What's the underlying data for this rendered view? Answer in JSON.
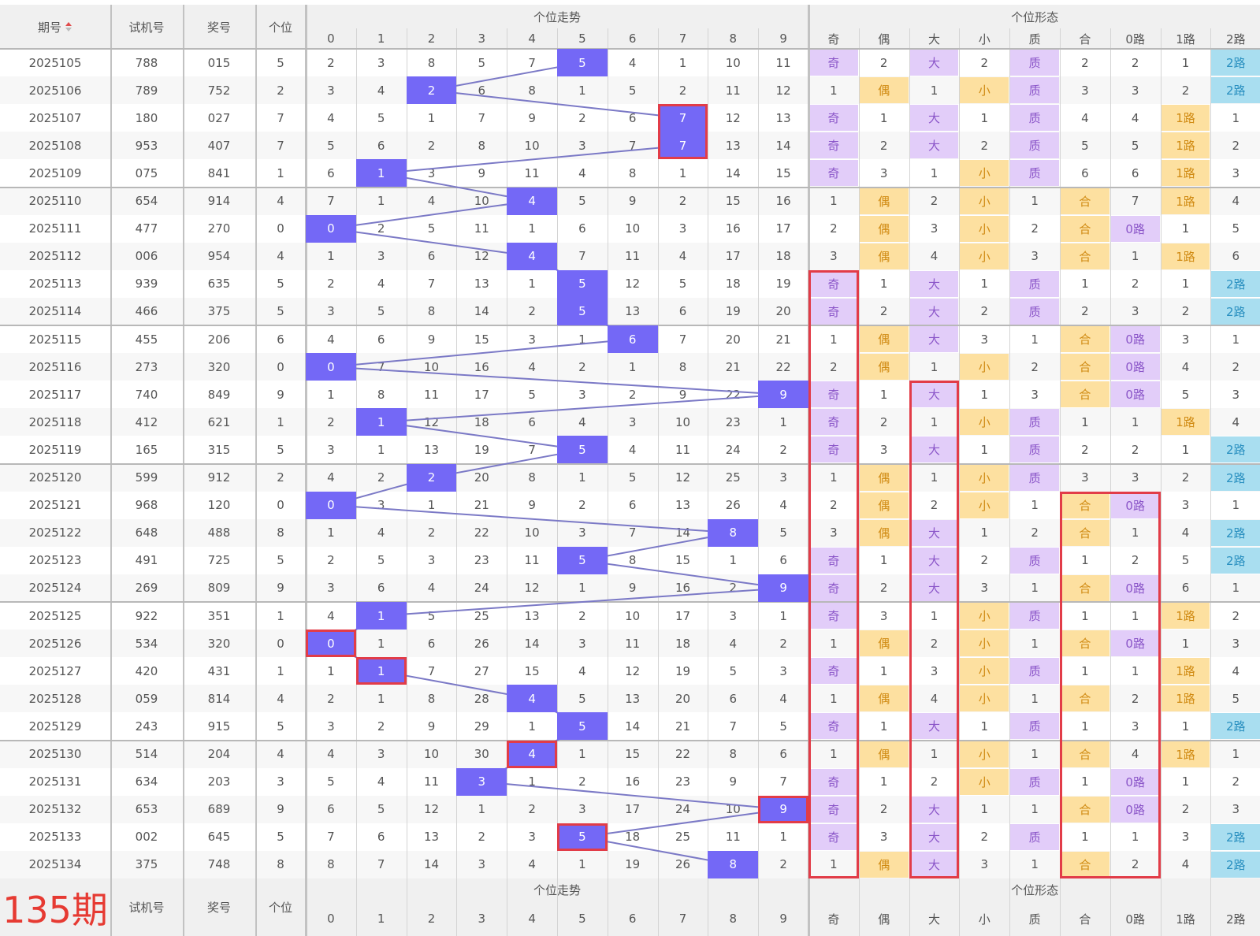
{
  "headers": {
    "issue": "期号",
    "sort_icon": "sort-arrows-icon",
    "trial": "试机号",
    "prize": "奖号",
    "unit": "个位",
    "trend_group": "个位走势",
    "shape_group": "个位形态",
    "digits": [
      "0",
      "1",
      "2",
      "3",
      "4",
      "5",
      "6",
      "7",
      "8",
      "9"
    ],
    "shapes": [
      "奇",
      "偶",
      "大",
      "小",
      "质",
      "合",
      "0路",
      "1路",
      "2路"
    ]
  },
  "footer": {
    "issue_label": "135期",
    "trial": "试机号",
    "prize": "奖号",
    "unit": "个位",
    "trend_group": "个位走势",
    "shape_group": "个位形态",
    "digits": [
      "0",
      "1",
      "2",
      "3",
      "4",
      "5",
      "6",
      "7",
      "8",
      "9"
    ],
    "shapes": [
      "奇",
      "偶",
      "大",
      "小",
      "质",
      "合",
      "0路",
      "1路",
      "2路"
    ]
  },
  "colors": {
    "hit": "#7468f6",
    "purple_cell": "#e2cdf9",
    "orange_cell": "#fde0a0",
    "blue_cell": "#a9def0",
    "highlight_border": "#e23c48",
    "line": "#7b79c6"
  },
  "chart_data": {
    "type": "table",
    "columns": [
      "期号",
      "试机号",
      "奖号",
      "个位",
      "个位走势 0-9",
      "奇",
      "偶",
      "大",
      "小",
      "质",
      "合",
      "0路",
      "1路",
      "2路"
    ],
    "rows": [
      {
        "issue": "2025105",
        "trial": "788",
        "prize": "015",
        "unit": "5",
        "trend": [
          "2",
          "3",
          "8",
          "5",
          "7",
          "5",
          "4",
          "1",
          "10",
          "11"
        ],
        "shape": [
          "奇",
          "2",
          "大",
          "2",
          "质",
          "2",
          "2",
          "1",
          "2路"
        ]
      },
      {
        "issue": "2025106",
        "trial": "789",
        "prize": "752",
        "unit": "2",
        "trend": [
          "3",
          "4",
          "2",
          "6",
          "8",
          "1",
          "5",
          "2",
          "11",
          "12"
        ],
        "shape": [
          "1",
          "偶",
          "1",
          "小",
          "质",
          "3",
          "3",
          "2",
          "2路"
        ]
      },
      {
        "issue": "2025107",
        "trial": "180",
        "prize": "027",
        "unit": "7",
        "trend": [
          "4",
          "5",
          "1",
          "7",
          "9",
          "2",
          "6",
          "7",
          "12",
          "13"
        ],
        "shape": [
          "奇",
          "1",
          "大",
          "1",
          "质",
          "4",
          "4",
          "1路",
          "1"
        ]
      },
      {
        "issue": "2025108",
        "trial": "953",
        "prize": "407",
        "unit": "7",
        "trend": [
          "5",
          "6",
          "2",
          "8",
          "10",
          "3",
          "7",
          "7",
          "13",
          "14"
        ],
        "shape": [
          "奇",
          "2",
          "大",
          "2",
          "质",
          "5",
          "5",
          "1路",
          "2"
        ]
      },
      {
        "issue": "2025109",
        "trial": "075",
        "prize": "841",
        "unit": "1",
        "trend": [
          "6",
          "1",
          "3",
          "9",
          "11",
          "4",
          "8",
          "1",
          "14",
          "15"
        ],
        "shape": [
          "奇",
          "3",
          "1",
          "小",
          "质",
          "6",
          "6",
          "1路",
          "3"
        ]
      },
      {
        "issue": "2025110",
        "trial": "654",
        "prize": "914",
        "unit": "4",
        "trend": [
          "7",
          "1",
          "4",
          "10",
          "4",
          "5",
          "9",
          "2",
          "15",
          "16"
        ],
        "shape": [
          "1",
          "偶",
          "2",
          "小",
          "1",
          "合",
          "7",
          "1路",
          "4"
        ]
      },
      {
        "issue": "2025111",
        "trial": "477",
        "prize": "270",
        "unit": "0",
        "trend": [
          "0",
          "2",
          "5",
          "11",
          "1",
          "6",
          "10",
          "3",
          "16",
          "17"
        ],
        "shape": [
          "2",
          "偶",
          "3",
          "小",
          "2",
          "合",
          "0路",
          "1",
          "5"
        ]
      },
      {
        "issue": "2025112",
        "trial": "006",
        "prize": "954",
        "unit": "4",
        "trend": [
          "1",
          "3",
          "6",
          "12",
          "4",
          "7",
          "11",
          "4",
          "17",
          "18"
        ],
        "shape": [
          "3",
          "偶",
          "4",
          "小",
          "3",
          "合",
          "1",
          "1路",
          "6"
        ]
      },
      {
        "issue": "2025113",
        "trial": "939",
        "prize": "635",
        "unit": "5",
        "trend": [
          "2",
          "4",
          "7",
          "13",
          "1",
          "5",
          "12",
          "5",
          "18",
          "19"
        ],
        "shape": [
          "奇",
          "1",
          "大",
          "1",
          "质",
          "1",
          "2",
          "1",
          "2路"
        ]
      },
      {
        "issue": "2025114",
        "trial": "466",
        "prize": "375",
        "unit": "5",
        "trend": [
          "3",
          "5",
          "8",
          "14",
          "2",
          "5",
          "13",
          "6",
          "19",
          "20"
        ],
        "shape": [
          "奇",
          "2",
          "大",
          "2",
          "质",
          "2",
          "3",
          "2",
          "2路"
        ]
      },
      {
        "issue": "2025115",
        "trial": "455",
        "prize": "206",
        "unit": "6",
        "trend": [
          "4",
          "6",
          "9",
          "15",
          "3",
          "1",
          "6",
          "7",
          "20",
          "21"
        ],
        "shape": [
          "1",
          "偶",
          "大",
          "3",
          "1",
          "合",
          "0路",
          "3",
          "1"
        ]
      },
      {
        "issue": "2025116",
        "trial": "273",
        "prize": "320",
        "unit": "0",
        "trend": [
          "0",
          "7",
          "10",
          "16",
          "4",
          "2",
          "1",
          "8",
          "21",
          "22"
        ],
        "shape": [
          "2",
          "偶",
          "1",
          "小",
          "2",
          "合",
          "0路",
          "4",
          "2"
        ]
      },
      {
        "issue": "2025117",
        "trial": "740",
        "prize": "849",
        "unit": "9",
        "trend": [
          "1",
          "8",
          "11",
          "17",
          "5",
          "3",
          "2",
          "9",
          "22",
          "9"
        ],
        "shape": [
          "奇",
          "1",
          "大",
          "1",
          "3",
          "合",
          "0路",
          "5",
          "3"
        ]
      },
      {
        "issue": "2025118",
        "trial": "412",
        "prize": "621",
        "unit": "1",
        "trend": [
          "2",
          "1",
          "12",
          "18",
          "6",
          "4",
          "3",
          "10",
          "23",
          "1"
        ],
        "shape": [
          "奇",
          "2",
          "1",
          "小",
          "质",
          "1",
          "1",
          "1路",
          "4"
        ]
      },
      {
        "issue": "2025119",
        "trial": "165",
        "prize": "315",
        "unit": "5",
        "trend": [
          "3",
          "1",
          "13",
          "19",
          "7",
          "5",
          "4",
          "11",
          "24",
          "2"
        ],
        "shape": [
          "奇",
          "3",
          "大",
          "1",
          "质",
          "2",
          "2",
          "1",
          "2路"
        ]
      },
      {
        "issue": "2025120",
        "trial": "599",
        "prize": "912",
        "unit": "2",
        "trend": [
          "4",
          "2",
          "2",
          "20",
          "8",
          "1",
          "5",
          "12",
          "25",
          "3"
        ],
        "shape": [
          "1",
          "偶",
          "1",
          "小",
          "质",
          "3",
          "3",
          "2",
          "2路"
        ]
      },
      {
        "issue": "2025121",
        "trial": "968",
        "prize": "120",
        "unit": "0",
        "trend": [
          "0",
          "3",
          "1",
          "21",
          "9",
          "2",
          "6",
          "13",
          "26",
          "4"
        ],
        "shape": [
          "2",
          "偶",
          "2",
          "小",
          "1",
          "合",
          "0路",
          "3",
          "1"
        ]
      },
      {
        "issue": "2025122",
        "trial": "648",
        "prize": "488",
        "unit": "8",
        "trend": [
          "1",
          "4",
          "2",
          "22",
          "10",
          "3",
          "7",
          "14",
          "8",
          "5"
        ],
        "shape": [
          "3",
          "偶",
          "大",
          "1",
          "2",
          "合",
          "1",
          "4",
          "2路"
        ]
      },
      {
        "issue": "2025123",
        "trial": "491",
        "prize": "725",
        "unit": "5",
        "trend": [
          "2",
          "5",
          "3",
          "23",
          "11",
          "5",
          "8",
          "15",
          "1",
          "6"
        ],
        "shape": [
          "奇",
          "1",
          "大",
          "2",
          "质",
          "1",
          "2",
          "5",
          "2路"
        ]
      },
      {
        "issue": "2025124",
        "trial": "269",
        "prize": "809",
        "unit": "9",
        "trend": [
          "3",
          "6",
          "4",
          "24",
          "12",
          "1",
          "9",
          "16",
          "2",
          "9"
        ],
        "shape": [
          "奇",
          "2",
          "大",
          "3",
          "1",
          "合",
          "0路",
          "6",
          "1"
        ]
      },
      {
        "issue": "2025125",
        "trial": "922",
        "prize": "351",
        "unit": "1",
        "trend": [
          "4",
          "1",
          "5",
          "25",
          "13",
          "2",
          "10",
          "17",
          "3",
          "1"
        ],
        "shape": [
          "奇",
          "3",
          "1",
          "小",
          "质",
          "1",
          "1",
          "1路",
          "2"
        ]
      },
      {
        "issue": "2025126",
        "trial": "534",
        "prize": "320",
        "unit": "0",
        "trend": [
          "0",
          "1",
          "6",
          "26",
          "14",
          "3",
          "11",
          "18",
          "4",
          "2"
        ],
        "shape": [
          "1",
          "偶",
          "2",
          "小",
          "1",
          "合",
          "0路",
          "1",
          "3"
        ]
      },
      {
        "issue": "2025127",
        "trial": "420",
        "prize": "431",
        "unit": "1",
        "trend": [
          "1",
          "1",
          "7",
          "27",
          "15",
          "4",
          "12",
          "19",
          "5",
          "3"
        ],
        "shape": [
          "奇",
          "1",
          "3",
          "小",
          "质",
          "1",
          "1",
          "1路",
          "4"
        ]
      },
      {
        "issue": "2025128",
        "trial": "059",
        "prize": "814",
        "unit": "4",
        "trend": [
          "2",
          "1",
          "8",
          "28",
          "4",
          "5",
          "13",
          "20",
          "6",
          "4"
        ],
        "shape": [
          "1",
          "偶",
          "4",
          "小",
          "1",
          "合",
          "2",
          "1路",
          "5"
        ]
      },
      {
        "issue": "2025129",
        "trial": "243",
        "prize": "915",
        "unit": "5",
        "trend": [
          "3",
          "2",
          "9",
          "29",
          "1",
          "5",
          "14",
          "21",
          "7",
          "5"
        ],
        "shape": [
          "奇",
          "1",
          "大",
          "1",
          "质",
          "1",
          "3",
          "1",
          "2路"
        ]
      },
      {
        "issue": "2025130",
        "trial": "514",
        "prize": "204",
        "unit": "4",
        "trend": [
          "4",
          "3",
          "10",
          "30",
          "4",
          "1",
          "15",
          "22",
          "8",
          "6"
        ],
        "shape": [
          "1",
          "偶",
          "1",
          "小",
          "1",
          "合",
          "4",
          "1路",
          "1"
        ]
      },
      {
        "issue": "2025131",
        "trial": "634",
        "prize": "203",
        "unit": "3",
        "trend": [
          "5",
          "4",
          "11",
          "3",
          "1",
          "2",
          "16",
          "23",
          "9",
          "7"
        ],
        "shape": [
          "奇",
          "1",
          "2",
          "小",
          "质",
          "1",
          "0路",
          "1",
          "2"
        ]
      },
      {
        "issue": "2025132",
        "trial": "653",
        "prize": "689",
        "unit": "9",
        "trend": [
          "6",
          "5",
          "12",
          "1",
          "2",
          "3",
          "17",
          "24",
          "10",
          "9"
        ],
        "shape": [
          "奇",
          "2",
          "大",
          "1",
          "1",
          "合",
          "0路",
          "2",
          "3"
        ]
      },
      {
        "issue": "2025133",
        "trial": "002",
        "prize": "645",
        "unit": "5",
        "trend": [
          "7",
          "6",
          "13",
          "2",
          "3",
          "5",
          "18",
          "25",
          "11",
          "1"
        ],
        "shape": [
          "奇",
          "3",
          "大",
          "2",
          "质",
          "1",
          "1",
          "3",
          "2路"
        ]
      },
      {
        "issue": "2025134",
        "trial": "375",
        "prize": "748",
        "unit": "8",
        "trend": [
          "8",
          "7",
          "14",
          "3",
          "4",
          "1",
          "19",
          "26",
          "8",
          "2"
        ],
        "shape": [
          "1",
          "偶",
          "大",
          "3",
          "1",
          "合",
          "2",
          "4",
          "2路"
        ]
      }
    ]
  }
}
